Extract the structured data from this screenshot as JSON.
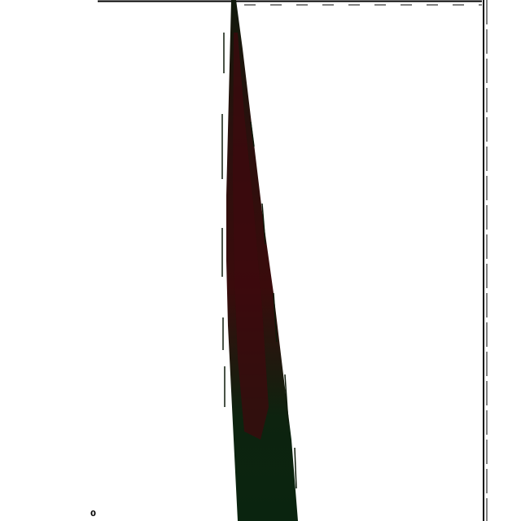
{
  "labels": {
    "corner_mark": "0"
  },
  "colors": {
    "background": "#ffffff",
    "frame": "#000000",
    "stroke_dark": "#0d1a0a",
    "stroke_red": "#3a0a0c",
    "stroke_green": "#0b2410"
  },
  "icons": {
    "frame": "frame-border",
    "shape": "tapered-spike"
  }
}
